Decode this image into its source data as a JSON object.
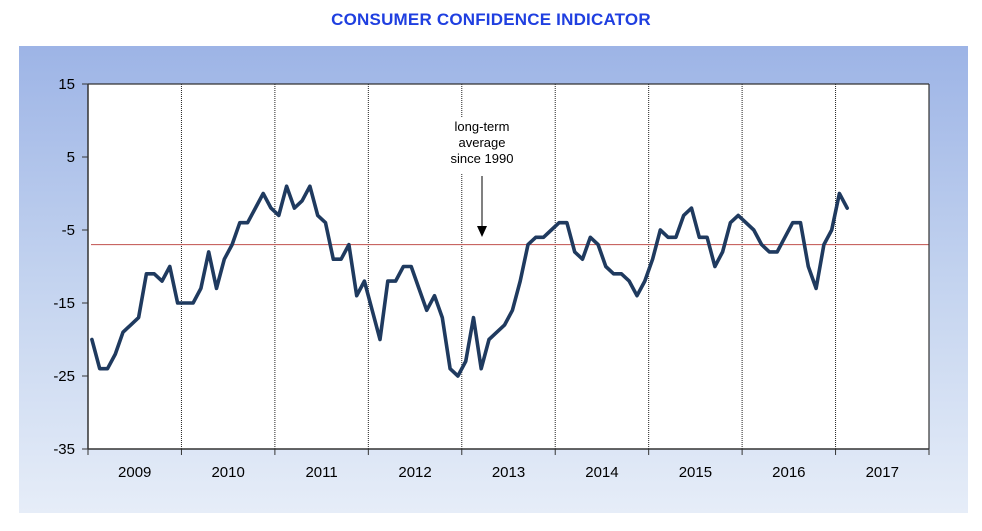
{
  "chart_data": {
    "type": "line",
    "title": "CONSUMER CONFIDENCE INDICATOR",
    "xlabel": "",
    "ylabel": "",
    "ylim": [
      -35,
      15
    ],
    "yticks": [
      "15",
      "5",
      "-5",
      "-15",
      "-25",
      "-35"
    ],
    "ytick_values": [
      15,
      5,
      -5,
      -15,
      -25,
      -35
    ],
    "xlim": [
      "2009-01",
      "2017-12"
    ],
    "x_categories": [
      "2009",
      "2010",
      "2011",
      "2012",
      "2013",
      "2014",
      "2015",
      "2016",
      "2017"
    ],
    "grid": "vertical year separators",
    "frequency": "monthly",
    "start": "2009-01",
    "series": [
      {
        "name": "Consumer confidence indicator",
        "color": "#1f3a5f",
        "values": [
          -20,
          -24,
          -24,
          -22,
          -19,
          -18,
          -17,
          -11,
          -11,
          -12,
          -10,
          -15,
          -15,
          -15,
          -13,
          -8,
          -13,
          -9,
          -7,
          -4,
          -4,
          -2,
          0,
          -2,
          -3,
          1,
          -2,
          -1,
          1,
          -3,
          -4,
          -9,
          -9,
          -7,
          -14,
          -12,
          -16,
          -20,
          -12,
          -12,
          -10,
          -10,
          -13,
          -16,
          -14,
          -17,
          -24,
          -25,
          -23,
          -17,
          -24,
          -20,
          -19,
          -18,
          -16,
          -12,
          -7,
          -6,
          -6,
          -5,
          -4,
          -4,
          -8,
          -9,
          -6,
          -7,
          -10,
          -11,
          -11,
          -12,
          -14,
          -12,
          -9,
          -5,
          -6,
          -6,
          -3,
          -2,
          -6,
          -6,
          -10,
          -8,
          -4,
          -3,
          -4,
          -5,
          -7,
          -8,
          -8,
          -6,
          -4,
          -4,
          -10,
          -13,
          -7,
          -5,
          0,
          -2
        ]
      },
      {
        "name": "Long-term average since 1990",
        "color": "#c0504d",
        "value": -7
      }
    ],
    "annotations": [
      {
        "text_lines": [
          "long-term",
          "average",
          "since 1990"
        ],
        "points_to": "long-term average line",
        "x_near": "2013-03"
      }
    ],
    "legend": "none"
  }
}
